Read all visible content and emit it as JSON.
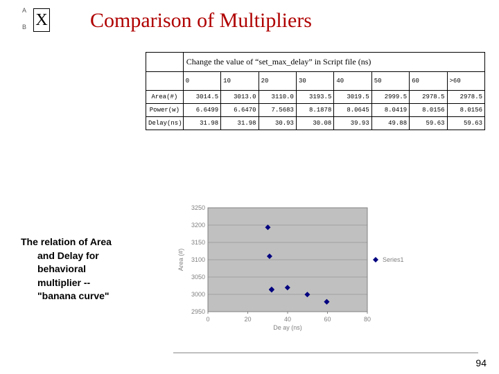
{
  "logo": {
    "x": "X",
    "a": "A",
    "b": "B",
    "out": ""
  },
  "title": "Comparison of Multipliers",
  "table": {
    "caption": "Change the value of “set_max_delay” in Script file (ns)",
    "col_headers": [
      "0",
      "10",
      "20",
      "30",
      "40",
      "50",
      "60",
      ">60"
    ],
    "row_headers": [
      "Area(#)",
      "Power(w)",
      "Delay(ns)"
    ],
    "rows": [
      [
        "3014.5",
        "3013.0",
        "3110.0",
        "3193.5",
        "3019.5",
        "2999.5",
        "2978.5",
        "2978.5"
      ],
      [
        "6.6499",
        "6.6470",
        "7.5683",
        "8.1878",
        "8.0645",
        "8.0419",
        "8.0156",
        "8.0156"
      ],
      [
        "31.98",
        "31.98",
        "30.93",
        "30.08",
        "39.93",
        "49.88",
        "59.63",
        "59.63"
      ]
    ]
  },
  "relation": {
    "l1": "The relation of Area",
    "l2": "and Delay for",
    "l3": "behavioral",
    "l4": "multiplier --",
    "l5": "\"banana curve\""
  },
  "chart": {
    "type": "scatter",
    "background_color": "#c0c0c0",
    "plot_border_color": "#808080",
    "grid_color": "#808080",
    "marker_color": "#000080",
    "marker_size": 4,
    "x_label": "De ay (ns)",
    "y_label": "Area (#)",
    "x_ticks": [
      0,
      20,
      40,
      60,
      80
    ],
    "y_ticks": [
      2950,
      3000,
      3050,
      3100,
      3150,
      3200,
      3250
    ],
    "xlim": [
      0,
      80
    ],
    "ylim": [
      2950,
      3250
    ],
    "legend": {
      "label": "Series1",
      "marker_color": "#000080"
    },
    "points": [
      [
        31.98,
        3014.5
      ],
      [
        31.98,
        3013.0
      ],
      [
        30.93,
        3110.0
      ],
      [
        30.08,
        3193.5
      ],
      [
        39.93,
        3019.5
      ],
      [
        49.88,
        2999.5
      ],
      [
        59.63,
        2978.5
      ],
      [
        59.63,
        2978.5
      ]
    ],
    "label_fontsize": 9,
    "tick_fontsize": 9
  },
  "page_number": "94"
}
